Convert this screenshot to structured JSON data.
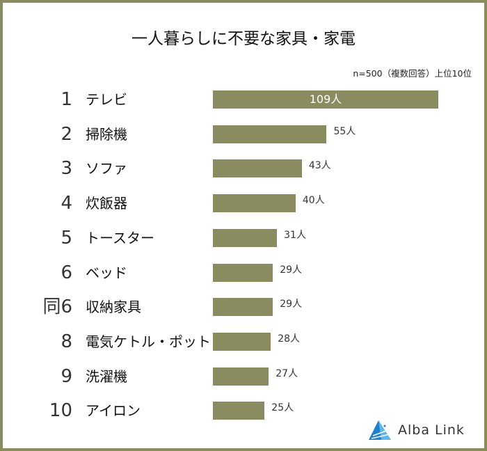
{
  "chart_data": {
    "type": "bar",
    "orientation": "horizontal",
    "title": "一人暮らしに不要な家具・家電",
    "note": "n=500（複数回答）上位10位",
    "ranks": [
      "1",
      "2",
      "3",
      "4",
      "5",
      "6",
      "同6",
      "8",
      "9",
      "10"
    ],
    "categories": [
      "テレビ",
      "掃除機",
      "ソファ",
      "炊飯器",
      "トースター",
      "ベッド",
      "収納家具",
      "電気ケトル・ポット",
      "洗濯機",
      "アイロン"
    ],
    "values": [
      109,
      55,
      43,
      40,
      31,
      29,
      29,
      28,
      27,
      25
    ],
    "value_labels": [
      "109人",
      "55人",
      "43人",
      "40人",
      "31人",
      "29人",
      "29人",
      "28人",
      "27人",
      "25人"
    ],
    "unit": "人",
    "grid": false,
    "colors": {
      "bar": "#8b8b61",
      "frame": "#8a8b5e",
      "logo": "#1f7fc9"
    }
  },
  "logo": {
    "text": "Alba Link"
  }
}
